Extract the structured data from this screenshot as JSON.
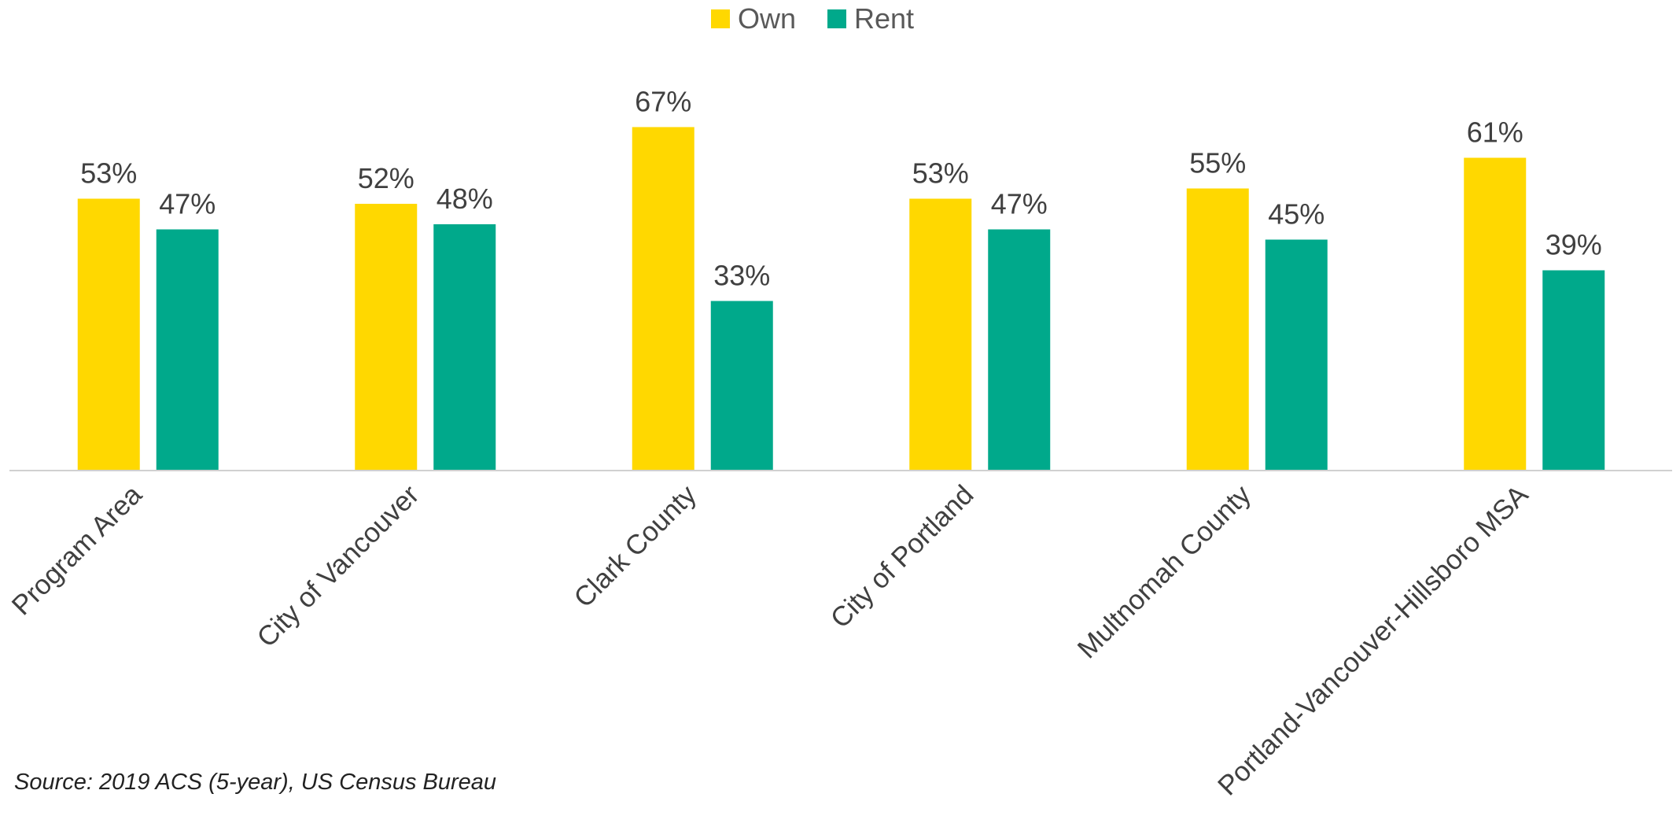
{
  "chart_data": {
    "type": "bar",
    "categories": [
      "Program Area",
      "City of Vancouver",
      "Clark County",
      "City of Portland",
      "Multnomah County",
      "Portland-Vancouver-Hillsboro MSA"
    ],
    "series": [
      {
        "name": "Own",
        "values": [
          53,
          52,
          67,
          53,
          55,
          61
        ],
        "labels": [
          "53%",
          "52%",
          "67%",
          "53%",
          "55%",
          "61%"
        ],
        "color": "#FFD800"
      },
      {
        "name": "Rent",
        "values": [
          47,
          48,
          33,
          47,
          45,
          39
        ],
        "labels": [
          "47%",
          "48%",
          "33%",
          "47%",
          "45%",
          "39%"
        ],
        "color": "#00A98B"
      }
    ],
    "ylim": [
      0,
      100
    ],
    "title": "",
    "xlabel": "",
    "ylabel": "",
    "legend_position": "top-center",
    "grid": false,
    "axis_color": "#D0D0D0",
    "label_color": "#404040"
  },
  "source_note": "Source: 2019 ACS (5-year), US Census Bureau"
}
